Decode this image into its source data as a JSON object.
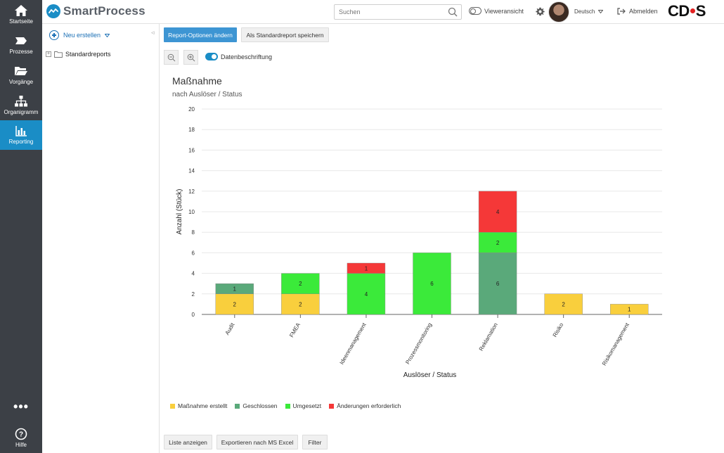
{
  "nav": {
    "items": [
      {
        "label": "Startseite",
        "icon": "home-icon"
      },
      {
        "label": "Prozesse",
        "icon": "process-icon"
      },
      {
        "label": "Vorgänge",
        "icon": "folder-open-icon"
      },
      {
        "label": "Organigramm",
        "icon": "org-chart-icon"
      },
      {
        "label": "Reporting",
        "icon": "bar-chart-icon"
      }
    ],
    "more": "•••",
    "help": "Hilfe"
  },
  "header": {
    "brand": "SmartProcess",
    "search_placeholder": "Suchen",
    "viewer_label": "Vieweransicht",
    "language": "Deutsch",
    "logout": "Abmelden",
    "company_logo_left": "CD",
    "company_logo_right": "S"
  },
  "tree": {
    "new_label": "Neu erstellen",
    "nodes": [
      {
        "label": "Standardreports",
        "expander": "+"
      }
    ]
  },
  "toolbar": {
    "report_options": "Report-Optionen ändern",
    "save_standard": "Als Standardreport speichern",
    "data_labels": "Datenbeschriftung"
  },
  "chart_header": {
    "title": "Maßnahme",
    "subtitle": "nach Auslöser / Status"
  },
  "chart_data": {
    "type": "bar",
    "stacked": true,
    "categories": [
      "Audit",
      "FMEA",
      "Ideenmanagement",
      "Prozessmonitoring",
      "Reklamation",
      "Risiko",
      "Risikomanagement"
    ],
    "series": [
      {
        "name": "Maßnahme erstellt",
        "color": "#f9cf3d",
        "values": [
          2,
          2,
          0,
          0,
          0,
          2,
          1
        ]
      },
      {
        "name": "Geschlossen",
        "color": "#5aa97a",
        "values": [
          1,
          0,
          0,
          0,
          6,
          0,
          0
        ]
      },
      {
        "name": "Umgesetzt",
        "color": "#3bea3a",
        "values": [
          0,
          2,
          4,
          6,
          2,
          0,
          0
        ]
      },
      {
        "name": "Änderungen erforderlich",
        "color": "#f53838",
        "values": [
          0,
          0,
          1,
          0,
          4,
          0,
          0
        ]
      }
    ],
    "xlabel": "Auslöser / Status",
    "ylabel": "Anzahl (Stück)",
    "ylim": [
      0,
      20
    ],
    "yticks": [
      0,
      2,
      4,
      6,
      8,
      10,
      12,
      14,
      16,
      18,
      20
    ],
    "grid": true,
    "legend_position": "bottom-left"
  },
  "footer_buttons": {
    "list": "Liste anzeigen",
    "export": "Exportieren nach MS Excel",
    "filter": "Filter"
  },
  "colors": {
    "nav_bg": "#3c4046",
    "nav_active": "#1a8dc6",
    "primary_button": "#3d95d3"
  }
}
